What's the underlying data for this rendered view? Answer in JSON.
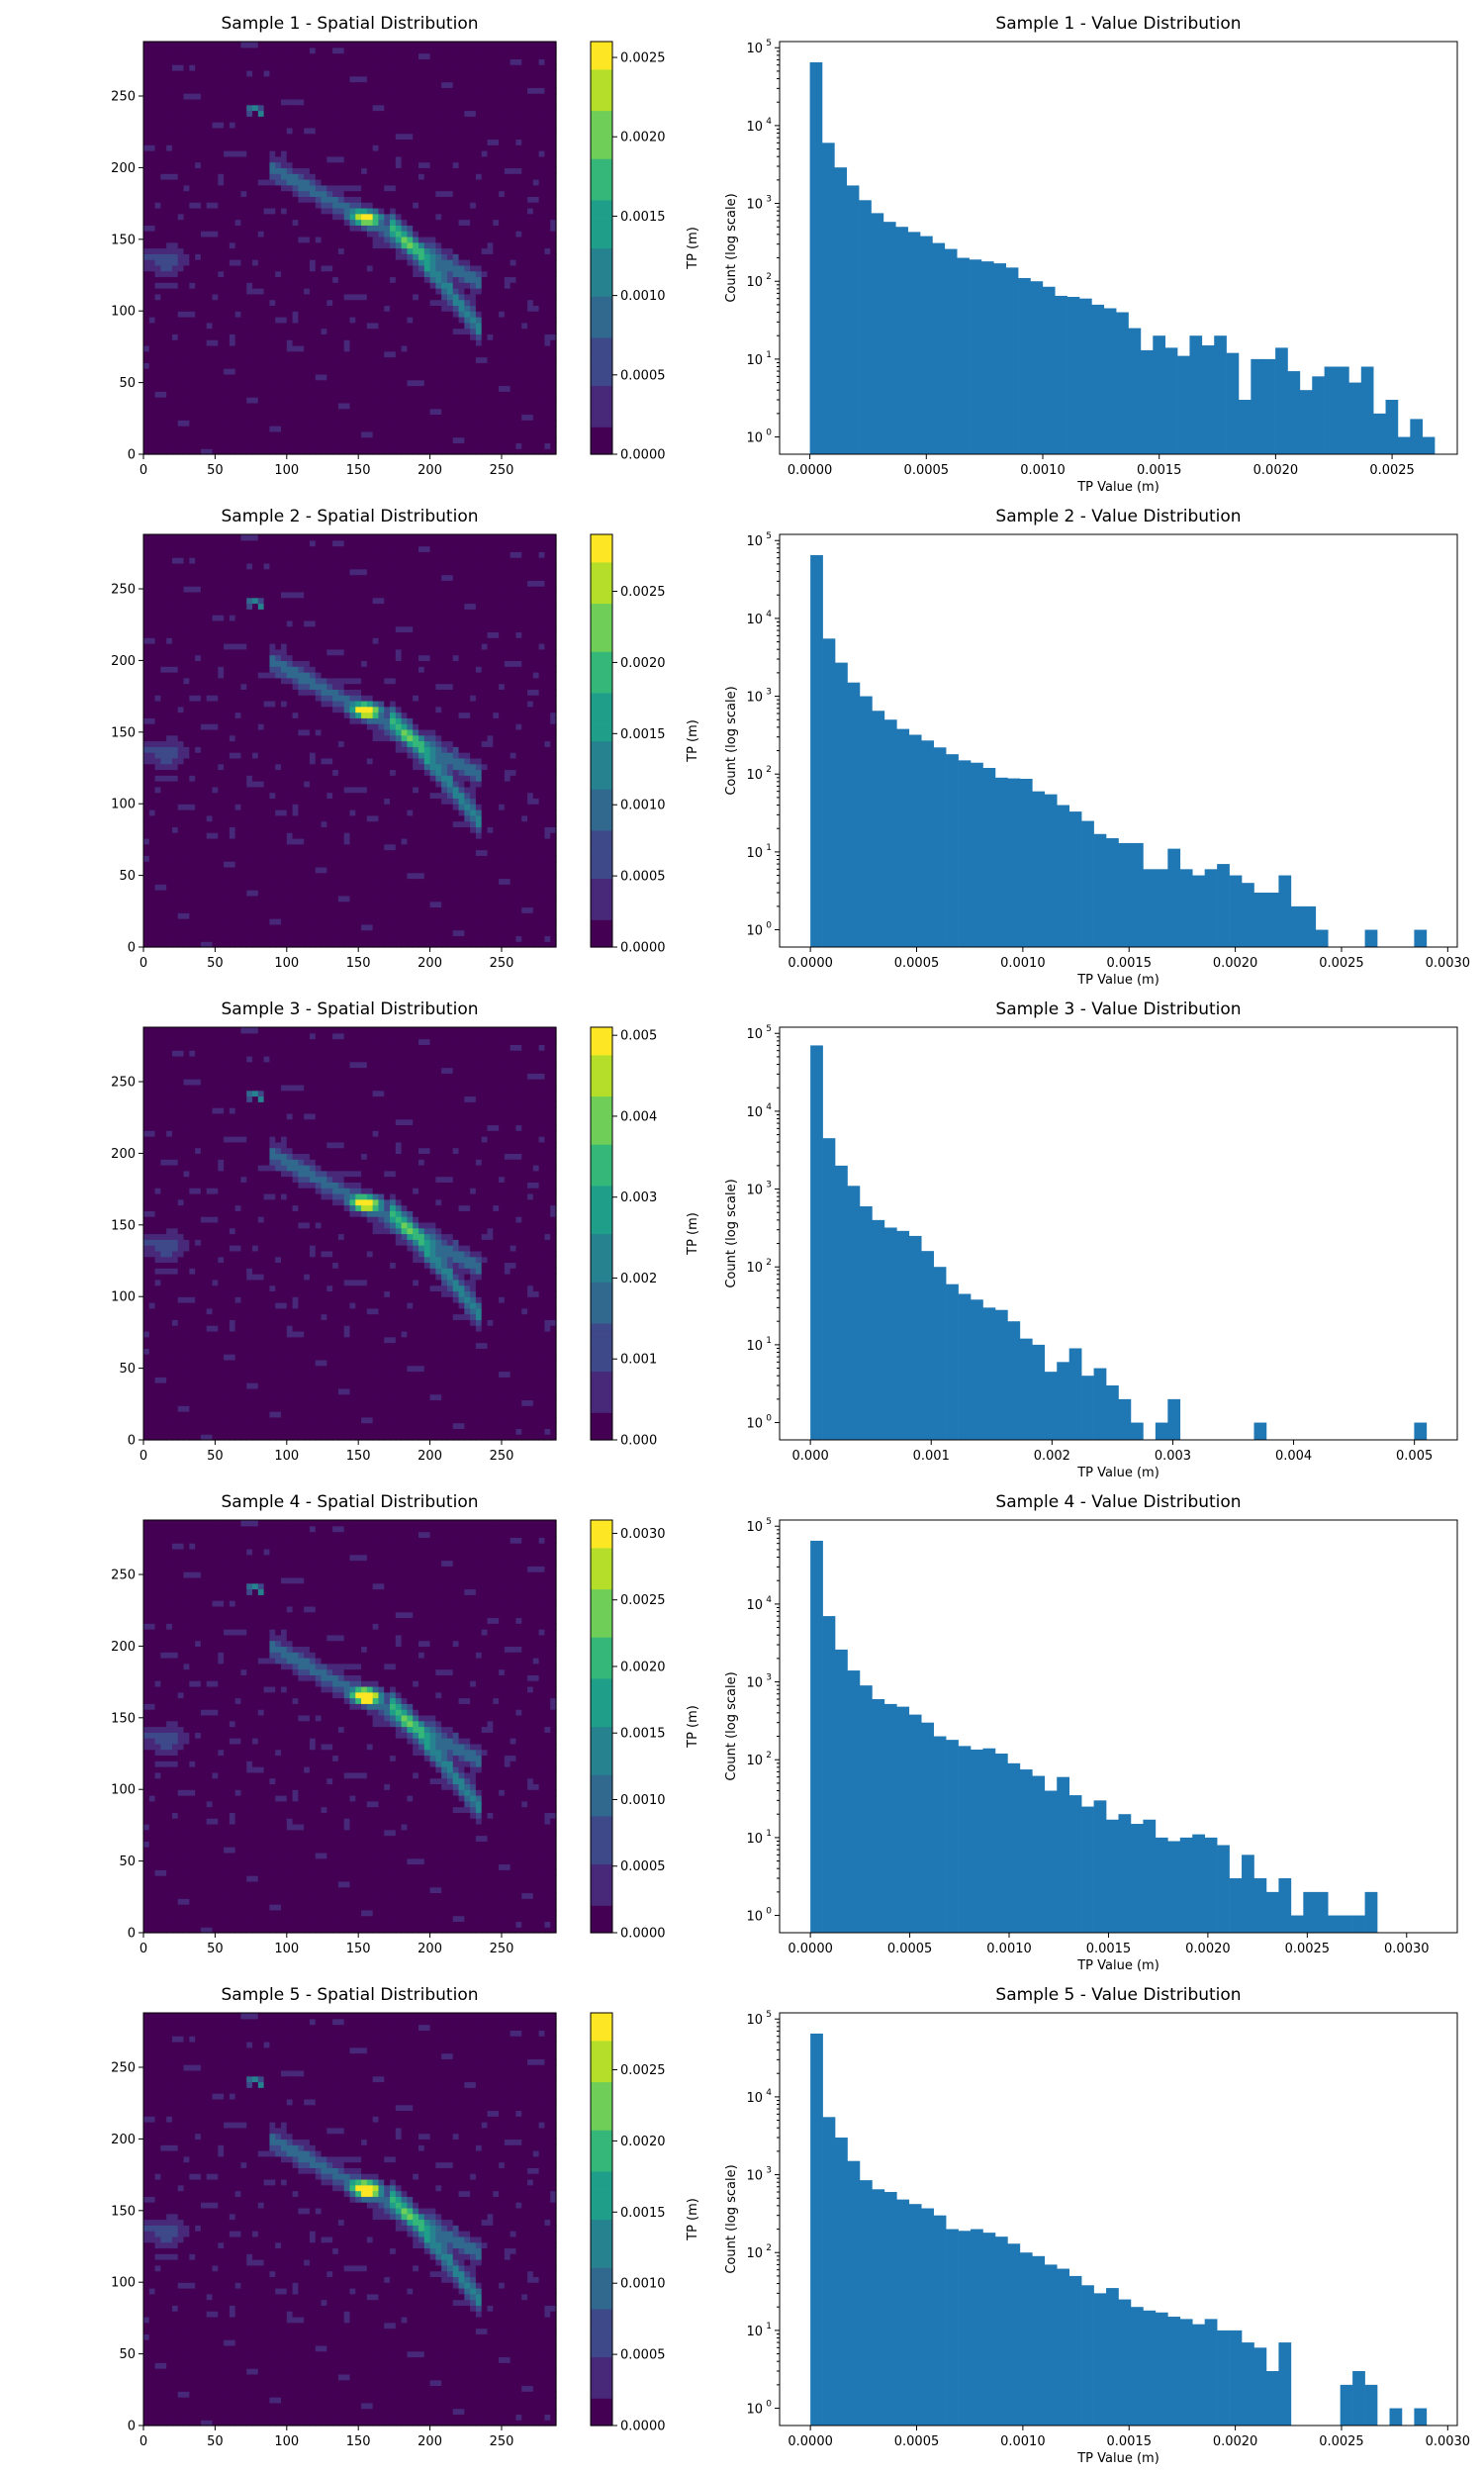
{
  "colormap": "viridis",
  "bar_color": "#1f77b4",
  "heatmap_colors": [
    "#440154",
    "#482878",
    "#3e4989",
    "#31688e",
    "#26828e",
    "#1f9e89",
    "#35b779",
    "#6ece58",
    "#b5de2b",
    "#fde725"
  ],
  "chart_data": [
    {
      "type": "heatmap",
      "title": "Sample 1 - Spatial Distribution",
      "xlabel": "",
      "ylabel": "",
      "x_ticks": [
        "0",
        "50",
        "100",
        "150",
        "200",
        "250"
      ],
      "y_ticks": [
        "0",
        "50",
        "100",
        "150",
        "200",
        "250"
      ],
      "xlim": [
        0,
        288
      ],
      "ylim": [
        0,
        288
      ],
      "colorbar": {
        "label": "TP (m)",
        "range": [
          0,
          0.0026
        ],
        "ticks": [
          "0.0000",
          "0.0005",
          "0.0010",
          "0.0015",
          "0.0020",
          "0.0025"
        ],
        "tick_values": [
          0,
          0.0005,
          0.001,
          0.0015,
          0.002,
          0.0025
        ]
      }
    },
    {
      "type": "bar",
      "title": "Sample 1 - Value Distribution",
      "xlabel": "TP Value (m)",
      "ylabel": "Count (log scale)",
      "y_scale": "log",
      "ylim": [
        0.6,
        120000
      ],
      "xlim": [
        -0.00013,
        0.00278
      ],
      "x_ticks": [
        "0.0000",
        "0.0005",
        "0.0010",
        "0.0015",
        "0.0020",
        "0.0025"
      ],
      "x_tick_values": [
        0,
        0.0005,
        0.001,
        0.0015,
        0.002,
        0.0025
      ],
      "y_ticks": [
        "10",
        "10",
        "10",
        "10",
        "10",
        "10"
      ],
      "y_tick_exponents": [
        "0",
        "1",
        "2",
        "3",
        "4",
        "5"
      ],
      "bin_start": 0,
      "bin_width": 5.26e-05,
      "values": [
        65000,
        6000,
        2900,
        1700,
        1100,
        750,
        580,
        500,
        430,
        380,
        310,
        260,
        200,
        190,
        180,
        170,
        150,
        110,
        100,
        85,
        65,
        63,
        60,
        50,
        45,
        40,
        25,
        13,
        20,
        14,
        11,
        20,
        15,
        20,
        12,
        3,
        10,
        10,
        14,
        7,
        4,
        6,
        8,
        8,
        5,
        8,
        2,
        3,
        1,
        1.7,
        1
      ]
    },
    {
      "type": "heatmap",
      "title": "Sample 2 - Spatial Distribution",
      "xlabel": "",
      "ylabel": "",
      "x_ticks": [
        "0",
        "50",
        "100",
        "150",
        "200",
        "250"
      ],
      "y_ticks": [
        "0",
        "50",
        "100",
        "150",
        "200",
        "250"
      ],
      "xlim": [
        0,
        288
      ],
      "ylim": [
        0,
        288
      ],
      "colorbar": {
        "label": "TP (m)",
        "range": [
          0,
          0.0029
        ],
        "ticks": [
          "0.0000",
          "0.0005",
          "0.0010",
          "0.0015",
          "0.0020",
          "0.0025"
        ],
        "tick_values": [
          0,
          0.0005,
          0.001,
          0.0015,
          0.002,
          0.0025
        ]
      }
    },
    {
      "type": "bar",
      "title": "Sample 2 - Value Distribution",
      "xlabel": "TP Value (m)",
      "ylabel": "Count (log scale)",
      "y_scale": "log",
      "ylim": [
        0.6,
        120000
      ],
      "xlim": [
        -0.000145,
        0.003045
      ],
      "x_ticks": [
        "0.0000",
        "0.0005",
        "0.0010",
        "0.0015",
        "0.0020",
        "0.0025",
        "0.0030"
      ],
      "x_tick_values": [
        0,
        0.0005,
        0.001,
        0.0015,
        0.002,
        0.0025,
        0.003
      ],
      "y_ticks": [
        "10",
        "10",
        "10",
        "10",
        "10",
        "10"
      ],
      "y_tick_exponents": [
        "0",
        "1",
        "2",
        "3",
        "4",
        "5"
      ],
      "bin_start": 0,
      "bin_width": 5.8e-05,
      "values": [
        65000,
        5500,
        2700,
        1500,
        1000,
        650,
        500,
        380,
        320,
        270,
        220,
        180,
        150,
        140,
        120,
        90,
        88,
        87,
        60,
        55,
        40,
        33,
        25,
        17,
        15,
        13,
        13,
        6,
        6,
        11,
        6,
        5,
        6,
        7,
        5,
        4,
        3,
        3,
        5,
        2,
        2,
        1,
        0,
        0,
        0,
        1,
        0,
        0,
        0,
        1
      ]
    },
    {
      "type": "heatmap",
      "title": "Sample 3 - Spatial Distribution",
      "xlabel": "",
      "ylabel": "",
      "x_ticks": [
        "0",
        "50",
        "100",
        "150",
        "200",
        "250"
      ],
      "y_ticks": [
        "0",
        "50",
        "100",
        "150",
        "200",
        "250"
      ],
      "xlim": [
        0,
        288
      ],
      "ylim": [
        0,
        288
      ],
      "colorbar": {
        "label": "TP (m)",
        "range": [
          0,
          0.0051
        ],
        "ticks": [
          "0.000",
          "0.001",
          "0.002",
          "0.003",
          "0.004",
          "0.005"
        ],
        "tick_values": [
          0,
          0.001,
          0.002,
          0.003,
          0.004,
          0.005
        ]
      }
    },
    {
      "type": "bar",
      "title": "Sample 3 - Value Distribution",
      "xlabel": "TP Value (m)",
      "ylabel": "Count (log scale)",
      "y_scale": "log",
      "ylim": [
        0.6,
        120000
      ],
      "xlim": [
        -0.000255,
        0.005355
      ],
      "x_ticks": [
        "0.000",
        "0.001",
        "0.002",
        "0.003",
        "0.004",
        "0.005"
      ],
      "x_tick_values": [
        0,
        0.001,
        0.002,
        0.003,
        0.004,
        0.005
      ],
      "y_ticks": [
        "10",
        "10",
        "10",
        "10",
        "10",
        "10"
      ],
      "y_tick_exponents": [
        "0",
        "1",
        "2",
        "3",
        "4",
        "5"
      ],
      "bin_start": 0,
      "bin_width": 0.000102,
      "values": [
        70000,
        4500,
        2000,
        1100,
        600,
        400,
        320,
        290,
        250,
        160,
        100,
        60,
        45,
        38,
        30,
        28,
        20,
        12,
        10,
        4.5,
        6,
        9,
        4,
        5,
        3,
        2,
        1,
        0,
        1,
        2,
        0,
        0,
        0,
        0,
        0,
        0,
        1,
        0,
        0,
        0,
        0,
        0,
        0,
        0,
        0,
        0,
        0,
        0,
        0,
        1
      ]
    },
    {
      "type": "heatmap",
      "title": "Sample 4 - Spatial Distribution",
      "xlabel": "",
      "ylabel": "",
      "x_ticks": [
        "0",
        "50",
        "100",
        "150",
        "200",
        "250"
      ],
      "y_ticks": [
        "0",
        "50",
        "100",
        "150",
        "200",
        "250"
      ],
      "xlim": [
        0,
        288
      ],
      "ylim": [
        0,
        288
      ],
      "colorbar": {
        "label": "TP (m)",
        "range": [
          0,
          0.0031
        ],
        "ticks": [
          "0.0000",
          "0.0005",
          "0.0010",
          "0.0015",
          "0.0020",
          "0.0025",
          "0.0030"
        ],
        "tick_values": [
          0,
          0.0005,
          0.001,
          0.0015,
          0.002,
          0.0025,
          0.003
        ]
      }
    },
    {
      "type": "bar",
      "title": "Sample 4 - Value Distribution",
      "xlabel": "TP Value (m)",
      "ylabel": "Count (log scale)",
      "y_scale": "log",
      "ylim": [
        0.6,
        120000
      ],
      "xlim": [
        -0.000155,
        0.003255
      ],
      "x_ticks": [
        "0.0000",
        "0.0005",
        "0.0010",
        "0.0015",
        "0.0020",
        "0.0025",
        "0.0030"
      ],
      "x_tick_values": [
        0,
        0.0005,
        0.001,
        0.0015,
        0.002,
        0.0025,
        0.003
      ],
      "y_ticks": [
        "10",
        "10",
        "10",
        "10",
        "10",
        "10"
      ],
      "y_tick_exponents": [
        "0",
        "1",
        "2",
        "3",
        "4",
        "5"
      ],
      "bin_start": 0,
      "bin_width": 6.2e-05,
      "values": [
        65000,
        7000,
        2600,
        1400,
        900,
        600,
        520,
        480,
        380,
        300,
        200,
        180,
        150,
        135,
        140,
        120,
        90,
        75,
        62,
        40,
        60,
        35,
        25,
        30,
        17,
        20,
        15,
        17,
        10,
        9,
        10,
        11,
        10,
        8,
        3,
        6,
        3,
        2,
        3,
        1,
        2,
        2,
        1,
        1,
        1,
        2,
        0,
        0,
        0,
        0
      ]
    },
    {
      "type": "heatmap",
      "title": "Sample 5 - Spatial Distribution",
      "xlabel": "",
      "ylabel": "",
      "x_ticks": [
        "0",
        "50",
        "100",
        "150",
        "200",
        "250"
      ],
      "y_ticks": [
        "0",
        "50",
        "100",
        "150",
        "200",
        "250"
      ],
      "xlim": [
        0,
        288
      ],
      "ylim": [
        0,
        288
      ],
      "colorbar": {
        "label": "TP (m)",
        "range": [
          0,
          0.0029
        ],
        "ticks": [
          "0.0000",
          "0.0005",
          "0.0010",
          "0.0015",
          "0.0020",
          "0.0025"
        ],
        "tick_values": [
          0,
          0.0005,
          0.001,
          0.0015,
          0.002,
          0.0025
        ]
      }
    },
    {
      "type": "bar",
      "title": "Sample 5 - Value Distribution",
      "xlabel": "TP Value (m)",
      "ylabel": "Count (log scale)",
      "y_scale": "log",
      "ylim": [
        0.6,
        120000
      ],
      "xlim": [
        -0.000145,
        0.003045
      ],
      "x_ticks": [
        "0.0000",
        "0.0005",
        "0.0010",
        "0.0015",
        "0.0020",
        "0.0025",
        "0.0030"
      ],
      "x_tick_values": [
        0,
        0.0005,
        0.001,
        0.0015,
        0.002,
        0.0025,
        0.003
      ],
      "y_ticks": [
        "10",
        "10",
        "10",
        "10",
        "10",
        "10"
      ],
      "y_tick_exponents": [
        "0",
        "1",
        "2",
        "3",
        "4",
        "5"
      ],
      "bin_start": 0,
      "bin_width": 5.8e-05,
      "values": [
        65000,
        5500,
        3000,
        1500,
        850,
        650,
        600,
        480,
        420,
        370,
        300,
        200,
        190,
        200,
        180,
        160,
        130,
        100,
        90,
        70,
        62,
        50,
        38,
        30,
        35,
        25,
        20,
        18,
        17,
        15,
        14,
        12,
        14,
        10,
        10,
        7,
        6,
        3,
        7,
        0,
        0,
        0,
        0,
        2,
        3,
        2,
        0,
        1,
        0,
        1
      ]
    }
  ]
}
